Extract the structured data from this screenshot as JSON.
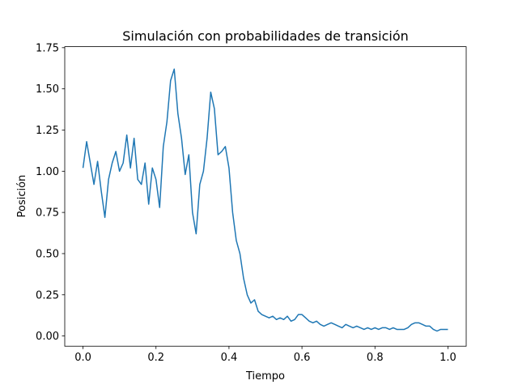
{
  "chart_data": {
    "type": "line",
    "title": "Simulación con probabilidades de transición",
    "xlabel": "Tiempo",
    "ylabel": "Posición",
    "color": "#1f77b4",
    "x": [
      0.0,
      0.01,
      0.02,
      0.03,
      0.04,
      0.05,
      0.06,
      0.07,
      0.08,
      0.09,
      0.1,
      0.11,
      0.12,
      0.13,
      0.14,
      0.15,
      0.16,
      0.17,
      0.18,
      0.19,
      0.2,
      0.21,
      0.22,
      0.23,
      0.24,
      0.25,
      0.26,
      0.27,
      0.28,
      0.29,
      0.3,
      0.31,
      0.32,
      0.33,
      0.34,
      0.35,
      0.36,
      0.37,
      0.38,
      0.39,
      0.4,
      0.41,
      0.42,
      0.43,
      0.44,
      0.45,
      0.46,
      0.47,
      0.48,
      0.49,
      0.5,
      0.51,
      0.52,
      0.53,
      0.54,
      0.55,
      0.56,
      0.57,
      0.58,
      0.59,
      0.6,
      0.61,
      0.62,
      0.63,
      0.64,
      0.65,
      0.66,
      0.67,
      0.68,
      0.69,
      0.7,
      0.71,
      0.72,
      0.73,
      0.74,
      0.75,
      0.76,
      0.77,
      0.78,
      0.79,
      0.8,
      0.81,
      0.82,
      0.83,
      0.84,
      0.85,
      0.86,
      0.87,
      0.88,
      0.89,
      0.9,
      0.91,
      0.92,
      0.93,
      0.94,
      0.95,
      0.96,
      0.97,
      0.98,
      0.99,
      1.0
    ],
    "values": [
      1.02,
      1.18,
      1.05,
      0.92,
      1.06,
      0.88,
      0.72,
      0.95,
      1.05,
      1.12,
      1.0,
      1.05,
      1.22,
      1.02,
      1.2,
      0.95,
      0.92,
      1.05,
      0.8,
      1.02,
      0.95,
      0.78,
      1.15,
      1.3,
      1.55,
      1.62,
      1.35,
      1.2,
      0.98,
      1.1,
      0.75,
      0.62,
      0.92,
      1.0,
      1.2,
      1.48,
      1.38,
      1.1,
      1.12,
      1.15,
      1.02,
      0.75,
      0.58,
      0.5,
      0.35,
      0.25,
      0.2,
      0.22,
      0.15,
      0.13,
      0.12,
      0.11,
      0.12,
      0.1,
      0.11,
      0.1,
      0.12,
      0.09,
      0.1,
      0.13,
      0.13,
      0.11,
      0.09,
      0.08,
      0.09,
      0.07,
      0.06,
      0.07,
      0.08,
      0.07,
      0.06,
      0.05,
      0.07,
      0.06,
      0.05,
      0.06,
      0.05,
      0.04,
      0.05,
      0.04,
      0.05,
      0.04,
      0.05,
      0.05,
      0.04,
      0.05,
      0.04,
      0.04,
      0.04,
      0.05,
      0.07,
      0.08,
      0.08,
      0.07,
      0.06,
      0.06,
      0.04,
      0.03,
      0.04,
      0.04,
      0.04
    ],
    "xlim": [
      -0.05,
      1.05
    ],
    "xticks": [
      {
        "value": 0,
        "label": "0.0"
      },
      0.2,
      0.4,
      0.6,
      0.8,
      {
        "value": 1,
        "label": "1.0"
      }
    ],
    "ylim": [
      -0.062,
      1.756
    ],
    "yticks": [
      {
        "value": 0,
        "label": "0.00"
      },
      0.25,
      {
        "value": 0.5,
        "label": "0.50"
      },
      0.75,
      {
        "value": 1,
        "label": "1.00"
      },
      1.25,
      {
        "value": 1.5,
        "label": "1.50"
      },
      1.75
    ],
    "grid": false
  }
}
